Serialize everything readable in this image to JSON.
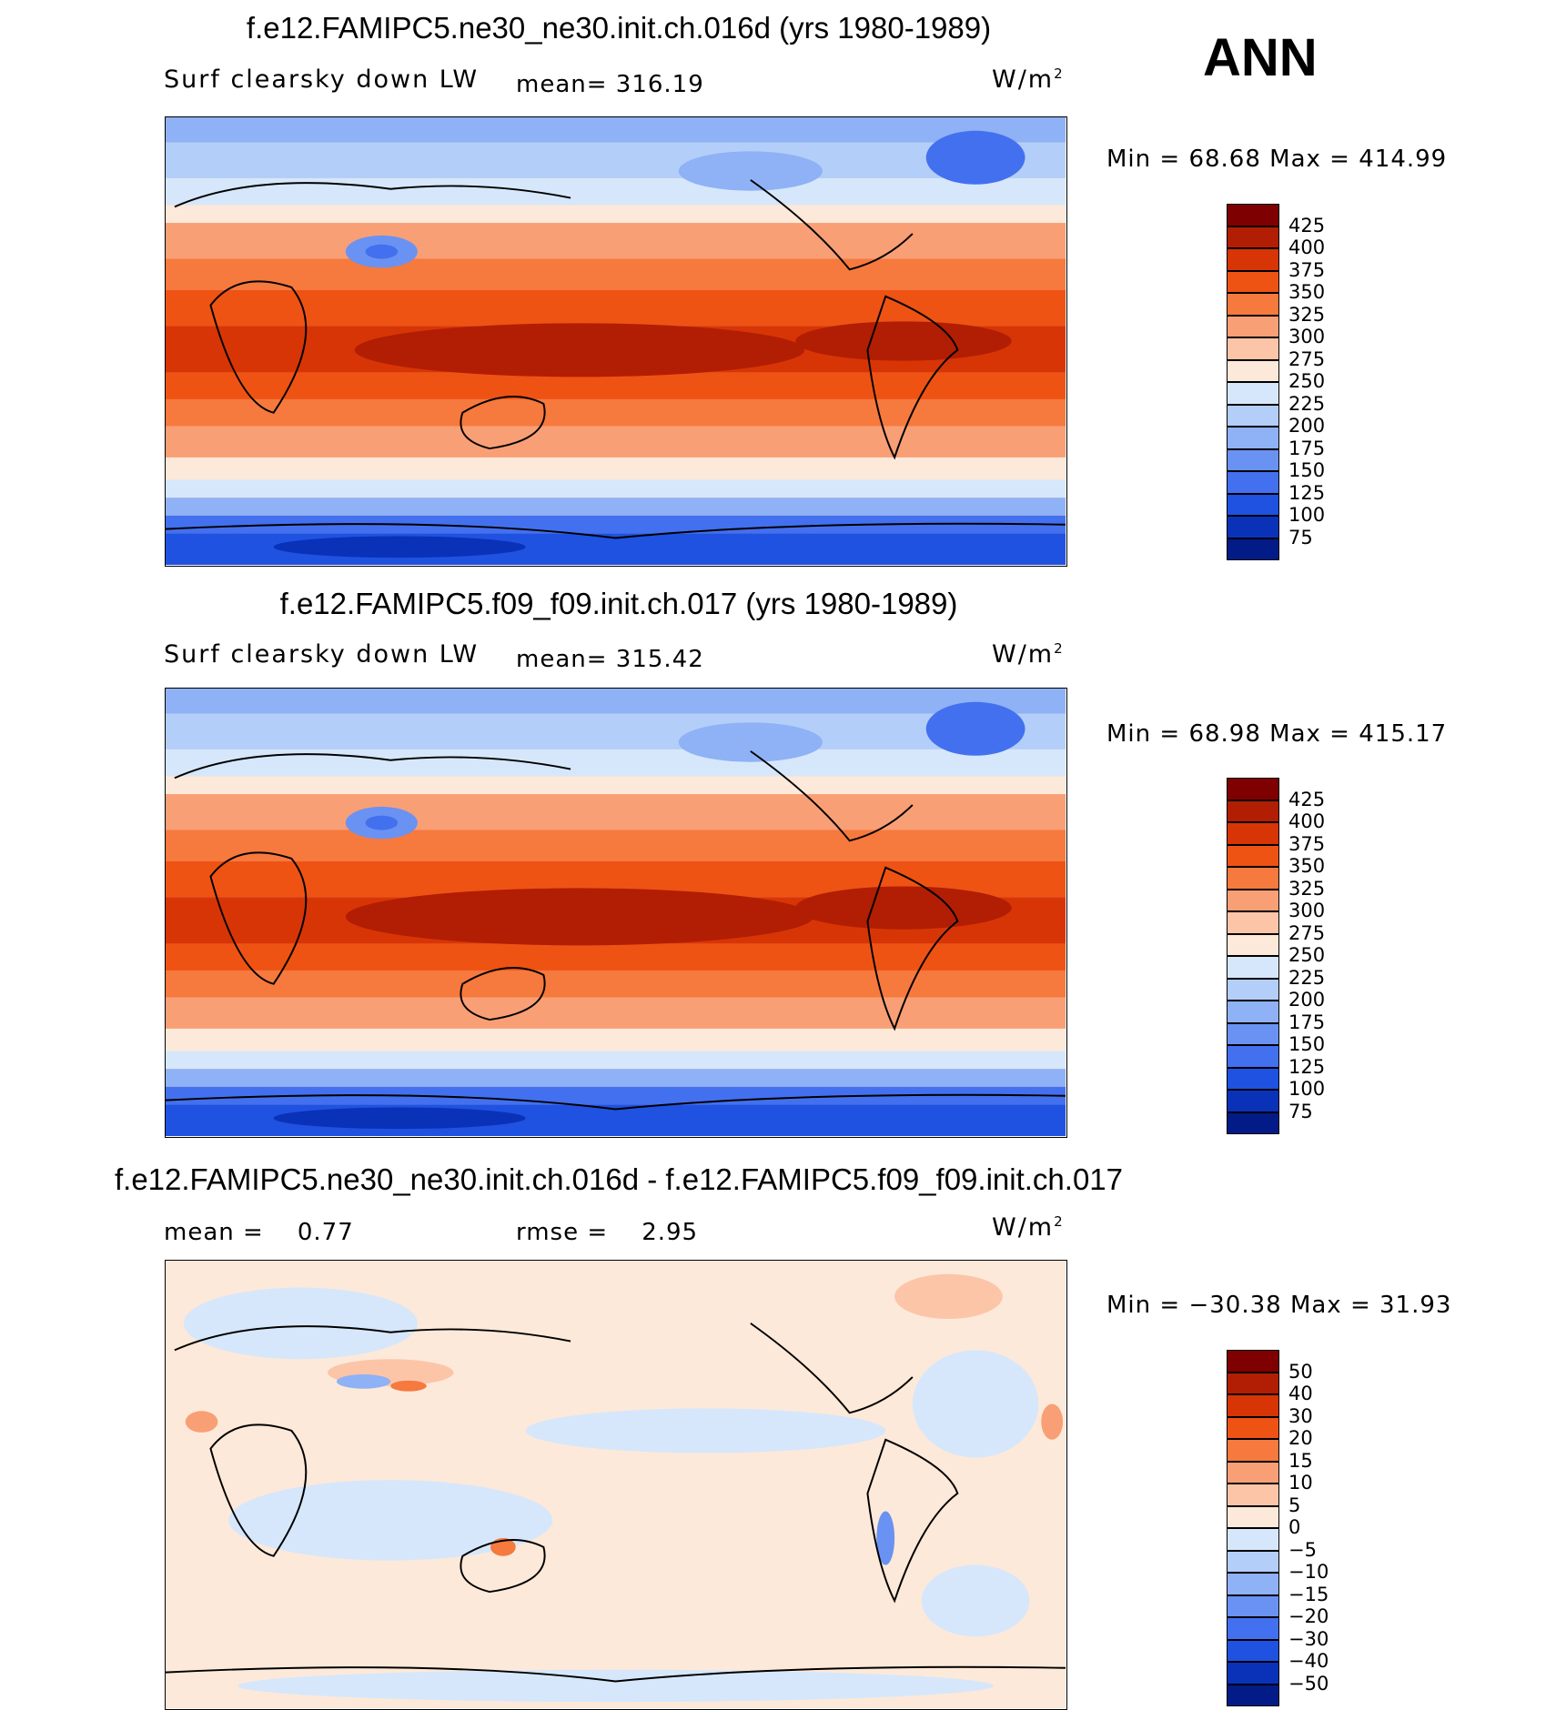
{
  "season": "ANN",
  "panels": [
    {
      "title": "f.e12.FAMIPC5.ne30_ne30.init.ch.016d (yrs 1980-1989)",
      "left_label": "Surf clearsky down LW",
      "center_label": "mean= 316.19",
      "units_base": "W/m",
      "units_exp": "2",
      "min_label": "Min =",
      "min_value": "68.68",
      "max_label": "Max =",
      "max_value": "414.99",
      "colorbar": {
        "labels": [
          "425",
          "400",
          "375",
          "350",
          "325",
          "300",
          "275",
          "250",
          "225",
          "200",
          "175",
          "150",
          "125",
          "100",
          "75"
        ],
        "colors": [
          "#7f0000",
          "#b11e03",
          "#d83506",
          "#ee5314",
          "#f6793e",
          "#f99f76",
          "#fcc5a8",
          "#fde9d9",
          "#d6e7fb",
          "#b3cef8",
          "#8fb1f5",
          "#6a92f2",
          "#4370ee",
          "#1f52e0",
          "#0a32b8",
          "#021b86"
        ]
      }
    },
    {
      "title": "f.e12.FAMIPC5.f09_f09.init.ch.017 (yrs 1980-1989)",
      "left_label": "Surf clearsky down LW",
      "center_label": "mean= 315.42",
      "units_base": "W/m",
      "units_exp": "2",
      "min_label": "Min =",
      "min_value": "68.98",
      "max_label": "Max =",
      "max_value": "415.17",
      "colorbar": {
        "labels": [
          "425",
          "400",
          "375",
          "350",
          "325",
          "300",
          "275",
          "250",
          "225",
          "200",
          "175",
          "150",
          "125",
          "100",
          "75"
        ],
        "colors": [
          "#7f0000",
          "#b11e03",
          "#d83506",
          "#ee5314",
          "#f6793e",
          "#f99f76",
          "#fcc5a8",
          "#fde9d9",
          "#d6e7fb",
          "#b3cef8",
          "#8fb1f5",
          "#6a92f2",
          "#4370ee",
          "#1f52e0",
          "#0a32b8",
          "#021b86"
        ]
      }
    },
    {
      "title": "f.e12.FAMIPC5.ne30_ne30.init.ch.016d - f.e12.FAMIPC5.f09_f09.init.ch.017",
      "left_label": "mean =    0.77",
      "center_label": "rmse =    2.95",
      "units_base": "W/m",
      "units_exp": "2",
      "min_label": "Min =",
      "min_value": "−30.38",
      "max_label": "Max =",
      "max_value": "31.93",
      "colorbar": {
        "labels": [
          "50",
          "40",
          "30",
          "20",
          "15",
          "10",
          "5",
          "0",
          "−5",
          "−10",
          "−15",
          "−20",
          "−30",
          "−40",
          "−50"
        ],
        "colors": [
          "#7f0000",
          "#b11e03",
          "#d83506",
          "#ee5314",
          "#f6793e",
          "#f99f76",
          "#fcc5a8",
          "#fde9d9",
          "#d6e7fb",
          "#b3cef8",
          "#8fb1f5",
          "#6a92f2",
          "#4370ee",
          "#1f52e0",
          "#0a32b8",
          "#021b86"
        ]
      }
    }
  ]
}
